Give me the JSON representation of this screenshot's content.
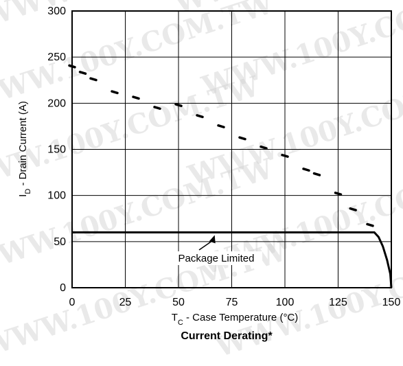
{
  "chart_data": {
    "type": "line",
    "title": "Current Derating*",
    "xlabel_main": "T",
    "xlabel_sub": "C",
    "xlabel_rest": " - Case Temperature (°C)",
    "ylabel_main": "I",
    "ylabel_sub": "D",
    "ylabel_rest": " - Drain Current (A)",
    "xlim": [
      0,
      150
    ],
    "ylim": [
      0,
      300
    ],
    "x_ticks": [
      0,
      25,
      50,
      75,
      100,
      125,
      150
    ],
    "y_ticks": [
      0,
      50,
      100,
      150,
      200,
      250,
      300
    ],
    "grid": true,
    "series": [
      {
        "style": "dotted",
        "points": [
          [
            0,
            240
          ],
          [
            5,
            233
          ],
          [
            10,
            226
          ],
          [
            20,
            212
          ],
          [
            30,
            206
          ],
          [
            40,
            195
          ],
          [
            50,
            198
          ],
          [
            60,
            186
          ],
          [
            70,
            175
          ],
          [
            80,
            162
          ],
          [
            90,
            152
          ],
          [
            100,
            143
          ],
          [
            110,
            128
          ],
          [
            115,
            123
          ],
          [
            125,
            102
          ],
          [
            132,
            85
          ],
          [
            140,
            68
          ]
        ]
      },
      {
        "style": "solid",
        "points": [
          [
            0,
            60
          ],
          [
            142,
            60
          ],
          [
            144,
            55
          ],
          [
            146,
            45
          ],
          [
            148,
            30
          ],
          [
            149.5,
            15
          ],
          [
            150,
            0
          ]
        ]
      }
    ],
    "annotation": {
      "text": "Package Limited",
      "target": [
        67,
        60
      ]
    },
    "watermark_text": "WWW.100Y.COM.TW"
  }
}
